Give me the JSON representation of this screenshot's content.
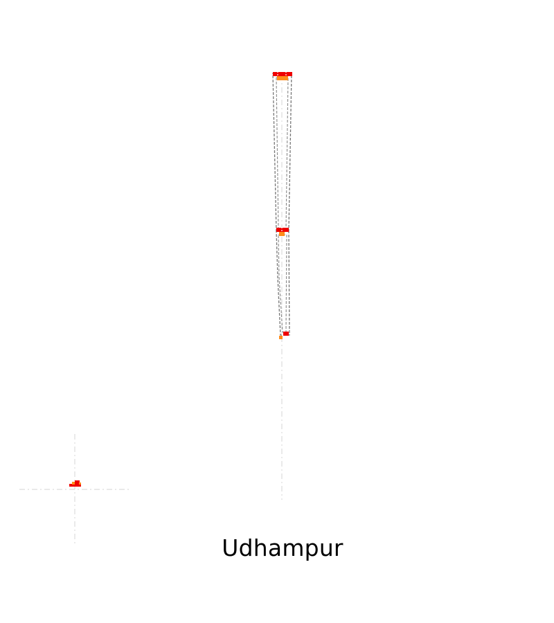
{
  "map": {
    "place_name": "Udhampur",
    "colors": {
      "background": "#ffffff",
      "outline_dashed": "#777777",
      "guide_line": "#dddddd",
      "marker_primary": "#ee0000",
      "marker_secondary": "#ff8c1a",
      "label_text": "#000000"
    },
    "icons": {
      "inset_marker": "location-marker-icon",
      "crosshair": "crosshair-icon"
    }
  }
}
